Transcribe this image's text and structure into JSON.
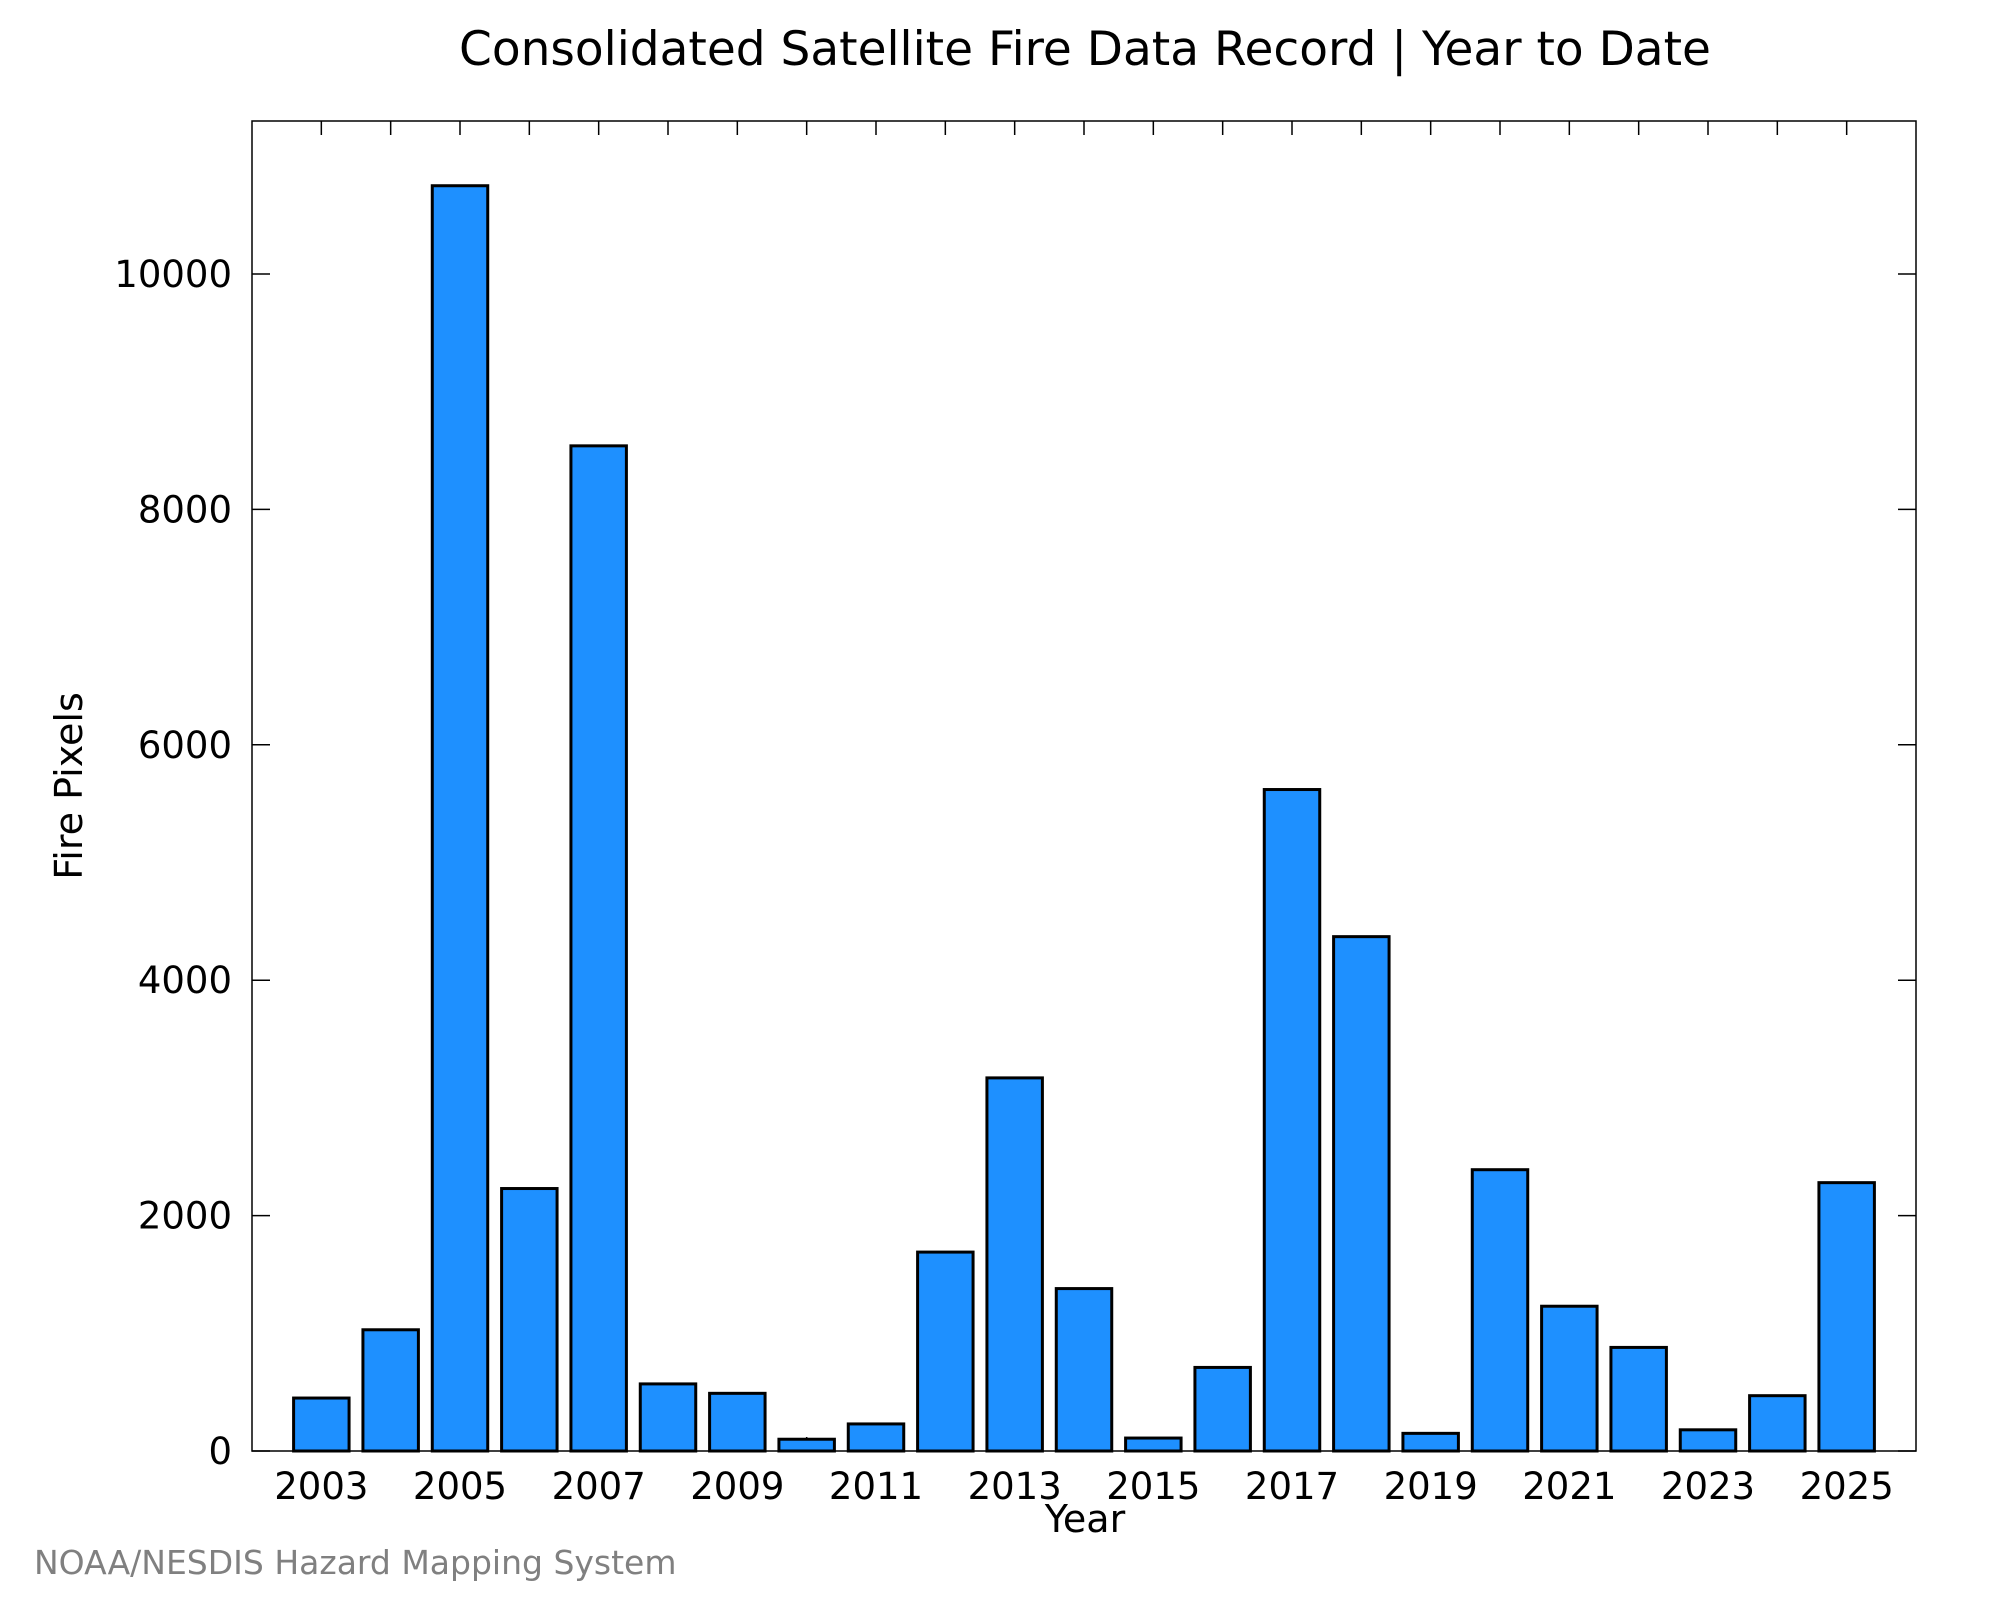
{
  "chart_data": {
    "type": "bar",
    "title": "Consolidated Satellite Fire Data Record | Year to Date",
    "xlabel": "Year",
    "ylabel": "Fire Pixels",
    "credit": "NOAA/NESDIS Hazard Mapping System",
    "categories": [
      "2003",
      "2004",
      "2005",
      "2006",
      "2007",
      "2008",
      "2009",
      "2010",
      "2011",
      "2012",
      "2013",
      "2014",
      "2015",
      "2016",
      "2017",
      "2018",
      "2019",
      "2020",
      "2021",
      "2022",
      "2023",
      "2024",
      "2025"
    ],
    "values": [
      450,
      1030,
      10750,
      2230,
      8540,
      570,
      490,
      100,
      230,
      1690,
      3170,
      1380,
      110,
      710,
      5620,
      4370,
      150,
      2390,
      1230,
      880,
      180,
      470,
      2280
    ],
    "xtick_labels": [
      "2003",
      "2005",
      "2007",
      "2009",
      "2011",
      "2013",
      "2015",
      "2017",
      "2019",
      "2021",
      "2023",
      "2025"
    ],
    "yticks": [
      0,
      2000,
      4000,
      6000,
      8000,
      10000
    ],
    "ytick_labels": [
      "0",
      "2000",
      "4000",
      "6000",
      "8000",
      "10000"
    ],
    "ylim": [
      0,
      11300
    ],
    "bar_color": "#1e90ff",
    "edge_color": "#000000",
    "grid": false,
    "legend": "none"
  }
}
